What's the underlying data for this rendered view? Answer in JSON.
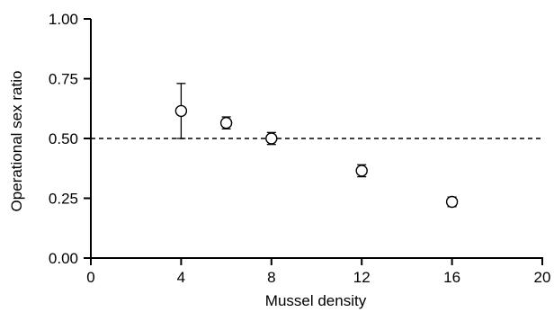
{
  "chart_data": {
    "type": "scatter",
    "xlabel": "Mussel density",
    "ylabel": "Operational sex ratio",
    "xlim": [
      0,
      20
    ],
    "ylim": [
      0,
      1.0
    ],
    "xticks": [
      0,
      4,
      8,
      12,
      16,
      20
    ],
    "xtick_labels": [
      "0",
      "4",
      "8",
      "12",
      "16",
      "20"
    ],
    "yticks": [
      0,
      0.25,
      0.5,
      0.75,
      1.0
    ],
    "ytick_labels": [
      "0.00",
      "0.25",
      "0.50",
      "0.75",
      "1.00"
    ],
    "grid": false,
    "reference_line": {
      "y": 0.5,
      "style": "dashed"
    },
    "series": [
      {
        "marker": "open-circle",
        "points": [
          {
            "x": 4,
            "y": 0.615,
            "err_low": 0.115,
            "err_high": 0.115
          },
          {
            "x": 6,
            "y": 0.565,
            "err_low": 0.025,
            "err_high": 0.025
          },
          {
            "x": 8,
            "y": 0.5,
            "err_low": 0.025,
            "err_high": 0.025
          },
          {
            "x": 12,
            "y": 0.365,
            "err_low": 0.025,
            "err_high": 0.025
          },
          {
            "x": 16,
            "y": 0.235,
            "err_low": 0.02,
            "err_high": 0.02
          }
        ]
      }
    ]
  }
}
